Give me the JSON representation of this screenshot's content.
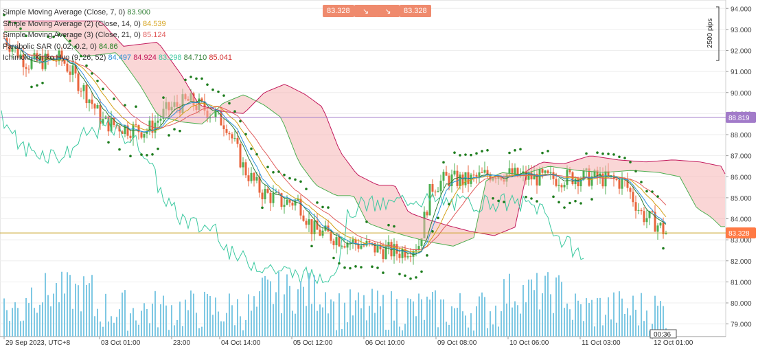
{
  "chart_data": {
    "type": "candlestick",
    "y_ticks": [
      "94.000",
      "93.000",
      "92.000",
      "91.000",
      "90.000",
      "89.000",
      "88.000",
      "87.000",
      "86.000",
      "85.000",
      "84.000",
      "83.000",
      "82.000",
      "81.000",
      "80.000",
      "79.000"
    ],
    "x_ticks": [
      "29 Sep 2023, UTC+8",
      "03 Oct 01:00",
      "23:00",
      "04 Oct 14:00",
      "05 Oct 12:00",
      "06 Oct 10:00",
      "09 Oct 08:00",
      "10 Oct 06:00",
      "11 Oct 03:00",
      "12 Oct 01:00"
    ],
    "ylim": [
      78.4,
      94.4
    ],
    "current_price": "83.328",
    "current_price_value": 83.328,
    "hline_price": "88.819",
    "hline_price_value": 88.819,
    "timer": "00:36",
    "scale_note": "2500 pips",
    "buy_label": "83.328",
    "sell_label": "83.328",
    "legend": [
      {
        "name": "Simple Moving Average (Close, 7, 0)",
        "values": [
          {
            "v": "83.900",
            "color": "#2e7d32"
          }
        ]
      },
      {
        "name": "Simple Moving Average (2) (Close, 14, 0)",
        "values": [
          {
            "v": "84.539",
            "color": "#d4a017"
          }
        ]
      },
      {
        "name": "Simple Moving Average (3) (Close, 21, 0)",
        "values": [
          {
            "v": "85.124",
            "color": "#e05c5c"
          }
        ]
      },
      {
        "name": "Parabolic SAR (0.02, 0.2, 0)",
        "values": [
          {
            "v": "84.86",
            "color": "#1b7f1b"
          }
        ]
      },
      {
        "name": "Ichimoku Kinko Hyo (9, 26, 52)",
        "values": [
          {
            "v": "84.497",
            "color": "#2a8fd8"
          },
          {
            "v": "84.924",
            "color": "#c2185b"
          },
          {
            "v": "83.298",
            "color": "#3cc9a0"
          },
          {
            "v": "84.710",
            "color": "#2e7d32"
          },
          {
            "v": "85.041",
            "color": "#d32f2f"
          }
        ]
      }
    ],
    "colors": {
      "bull": "#4caf50",
      "bear": "#e8643c",
      "sma7": "#2e7d32",
      "sma14": "#d4a017",
      "sma21": "#e05c5c",
      "sar": "#1e7d1e",
      "tenkan": "#2a8fd8",
      "kijun": "#c2185b",
      "chikou": "#3cc9a0",
      "cloud_bull": "#cde8d6",
      "cloud_bear": "#f5b5b5",
      "volume": "#7ec8e3",
      "hline": "#a27bc9",
      "price": "#ff7a45"
    }
  }
}
